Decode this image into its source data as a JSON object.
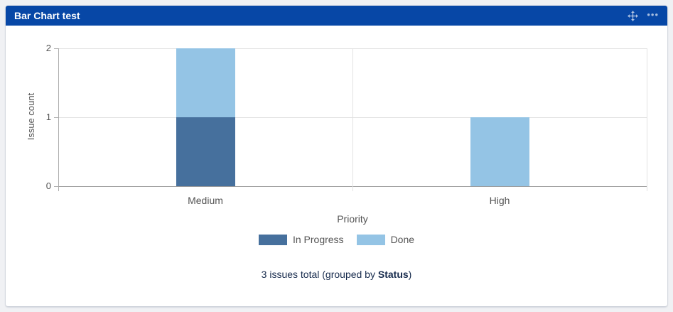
{
  "header": {
    "title": "Bar Chart test",
    "more_glyph": "•••",
    "icons": [
      "move-icon",
      "ellipsis-icon"
    ]
  },
  "chart_data": {
    "type": "bar",
    "stacked": true,
    "categories": [
      "Medium",
      "High"
    ],
    "series": [
      {
        "name": "In Progress",
        "color": "#46709D",
        "values": [
          1,
          0
        ]
      },
      {
        "name": "Done",
        "color": "#94C4E5",
        "values": [
          1,
          1
        ]
      }
    ],
    "xlabel": "Priority",
    "ylabel": "Issue count",
    "ylim": [
      0,
      2
    ],
    "yticks": [
      0,
      1,
      2
    ],
    "grid": true,
    "legend_position": "bottom"
  },
  "footer": {
    "prefix": "3 issues total (grouped by ",
    "bold": "Status",
    "suffix": ")"
  },
  "colors": {
    "header_bg": "#0747A6",
    "page_bg": "#F0F1F4",
    "series_in_progress": "#46709D",
    "series_done": "#94C4E5",
    "footer_text": "#172B4D"
  }
}
